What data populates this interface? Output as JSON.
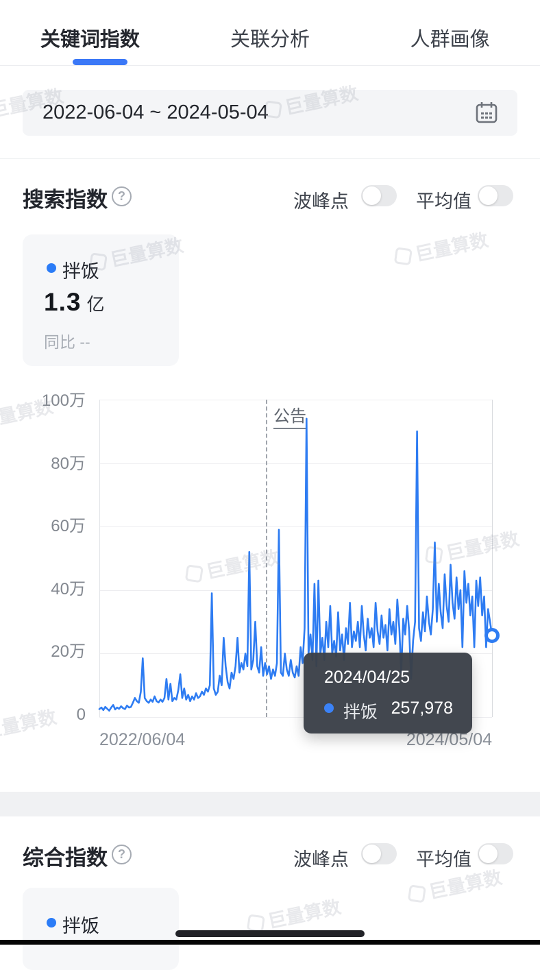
{
  "tabs": {
    "items": [
      {
        "label": "关键词指数",
        "active": true
      },
      {
        "label": "关联分析",
        "active": false
      },
      {
        "label": "人群画像",
        "active": false
      }
    ]
  },
  "date_range": {
    "value": "2022-06-04  ~  2024-05-04"
  },
  "search_index_section": {
    "title": "搜索指数",
    "help_icon": "question-circle-icon",
    "toggles": [
      {
        "label": "波峰点",
        "on": false
      },
      {
        "label": "平均值",
        "on": false
      }
    ],
    "legend_card": {
      "keyword": "拌饭",
      "dot_color": "#2b7cf7",
      "value": "1.3",
      "unit": "亿",
      "yoy": "同比 --"
    }
  },
  "chart_data": {
    "type": "line",
    "series": [
      {
        "name": "拌饭",
        "color": "#2e7cf2",
        "unit_note": "values in 万 (10,000s), sampled left-to-right across 2022/06/04–2024/05/04",
        "values_wan": [
          2.5,
          3,
          2.2,
          3.2,
          2.6,
          2,
          3,
          3.8,
          2.4,
          3,
          2.6,
          3.4,
          2.8,
          2.5,
          3.6,
          3,
          3.2,
          4.5,
          6,
          5,
          4.5,
          8,
          18.5,
          6,
          5,
          4.5,
          5.5,
          4.8,
          6.5,
          5,
          4.6,
          5.5,
          4.8,
          6,
          12,
          5.5,
          10.5,
          5,
          6,
          5.5,
          8.5,
          13.5,
          6,
          9,
          5.5,
          7,
          5,
          6.5,
          5.5,
          7.5,
          6,
          6.5,
          8,
          7,
          9,
          8,
          10,
          39,
          9,
          7,
          8,
          13,
          10,
          25,
          16,
          11,
          9,
          14,
          12,
          16,
          25,
          14,
          17,
          15,
          20,
          16,
          52,
          15,
          18,
          30,
          16,
          14,
          22,
          13,
          17,
          13.5,
          16,
          12,
          15,
          13,
          17,
          59,
          14,
          13,
          20,
          15,
          13,
          18,
          14,
          12.5,
          16,
          13,
          22,
          17,
          28,
          94,
          20,
          26,
          18,
          42,
          16,
          43,
          20,
          25,
          18,
          30,
          22,
          35,
          20,
          24,
          19,
          33,
          21,
          26,
          18,
          28,
          23,
          36,
          22,
          27,
          24,
          30,
          22,
          35,
          26,
          21,
          31,
          25,
          28,
          22,
          36,
          27,
          23,
          32,
          25,
          29,
          21,
          34,
          26,
          30,
          23,
          37,
          28,
          14,
          31,
          26,
          35,
          27,
          12,
          24,
          30,
          90,
          28,
          24,
          33,
          27,
          38,
          30,
          26,
          34,
          55,
          30,
          42,
          33,
          28,
          45,
          35,
          30,
          48,
          36,
          31,
          44,
          34,
          40,
          22,
          46,
          36,
          42,
          32,
          38,
          22,
          43,
          35,
          44,
          32,
          38,
          22,
          34,
          30,
          25.8
        ]
      }
    ],
    "x_start": "2022/06/04",
    "x_end": "2024/05/04",
    "y_ticks": [
      "100万",
      "80万",
      "60万",
      "40万",
      "20万",
      "0"
    ],
    "y_max_wan": 100,
    "ylim": [
      0,
      1000000
    ],
    "grid": "horizontal",
    "legend_position": "card-top-left",
    "annotation": {
      "label": "公告",
      "x_fraction": 0.425,
      "style": "dashed-vertical"
    },
    "tooltip": {
      "date": "2024/04/25",
      "series": "拌饭",
      "value": "257,978"
    },
    "endpoint_marker": {
      "value_wan": 25.8
    }
  },
  "composite_index_section": {
    "title": "综合指数",
    "help_icon": "question-circle-icon",
    "toggles": [
      {
        "label": "波峰点",
        "on": false
      },
      {
        "label": "平均值",
        "on": false
      }
    ],
    "legend_card": {
      "keyword": "拌饭",
      "dot_color": "#2b7cf7"
    }
  },
  "watermark": {
    "text": "巨量算数"
  },
  "colors": {
    "accent_blue": "#2e7cf2",
    "tab_underline": "#3b78f7",
    "toggle_track": "#e8e9eb",
    "tooltip_bg": "#3a3f48",
    "card_bg": "#f6f7f9",
    "gridline": "#ededf0"
  }
}
